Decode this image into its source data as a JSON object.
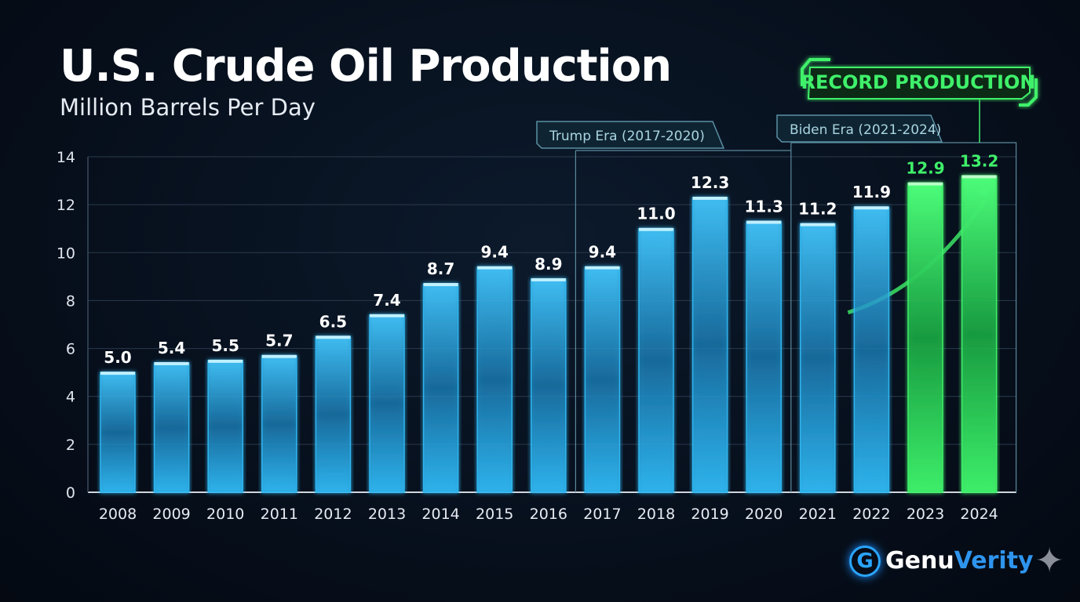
{
  "chart_data": {
    "type": "bar",
    "title": "U.S. Crude Oil Production",
    "subtitle": "Million Barrels Per Day",
    "categories": [
      "2008",
      "2009",
      "2010",
      "2011",
      "2012",
      "2013",
      "2014",
      "2015",
      "2016",
      "2017",
      "2018",
      "2019",
      "2020",
      "2021",
      "2022",
      "2023",
      "2024"
    ],
    "values": [
      5.0,
      5.4,
      5.5,
      5.7,
      6.5,
      7.4,
      8.7,
      9.4,
      8.9,
      9.4,
      11.0,
      12.3,
      11.3,
      11.2,
      11.9,
      12.9,
      13.2
    ],
    "ylim": [
      0,
      14
    ],
    "yticks": [
      0,
      2,
      4,
      6,
      8,
      10,
      12,
      14
    ],
    "grid": true,
    "colors": {
      "bar": "#2fb6f0",
      "highlight": "#3ff06a",
      "background": "#07101d"
    },
    "highlighted": [
      "2023",
      "2024"
    ],
    "annotations": [
      {
        "text": "Trump Era (2017-2020)",
        "from": "2017",
        "to": "2020"
      },
      {
        "text": "Biden Era (2021-2024)",
        "from": "2021",
        "to": "2024"
      },
      {
        "text": "RECORD PRODUCTION",
        "target": "2024"
      }
    ]
  },
  "branding": {
    "logo_part1": "Genu",
    "logo_part2": "Verity",
    "logo_icon": "g-circuit-icon",
    "sparkle": "sparkle-icon"
  }
}
